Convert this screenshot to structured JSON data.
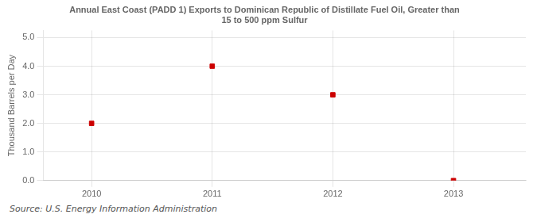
{
  "chart_data": {
    "type": "scatter",
    "title": "Annual East Coast (PADD 1) Exports to Dominican Republic of Distillate Fuel Oil, Greater than\n15 to 500 ppm Sulfur",
    "ylabel": "Thousand Barrels per Day",
    "annotations": [
      "Source: U.S. Energy Information Administration"
    ],
    "x": [
      2010,
      2011,
      2012,
      2013
    ],
    "values": [
      2.0,
      4.0,
      3.0,
      0.0
    ],
    "color": "#cc0000",
    "marker": "square",
    "xlim": [
      2009.6,
      2013.6
    ],
    "ylim": [
      0.0,
      5.25
    ],
    "xticks": [
      2010,
      2011,
      2012,
      2013
    ],
    "yticks": [
      {
        "value": 0.0,
        "label": "0.0"
      },
      {
        "value": 1.0,
        "label": "1.0"
      },
      {
        "value": 2.0,
        "label": "2.0"
      },
      {
        "value": 3.0,
        "label": "3.0"
      },
      {
        "value": 4.0,
        "label": "4.0"
      },
      {
        "value": 5.0,
        "label": "5.0"
      }
    ],
    "grid": true
  }
}
